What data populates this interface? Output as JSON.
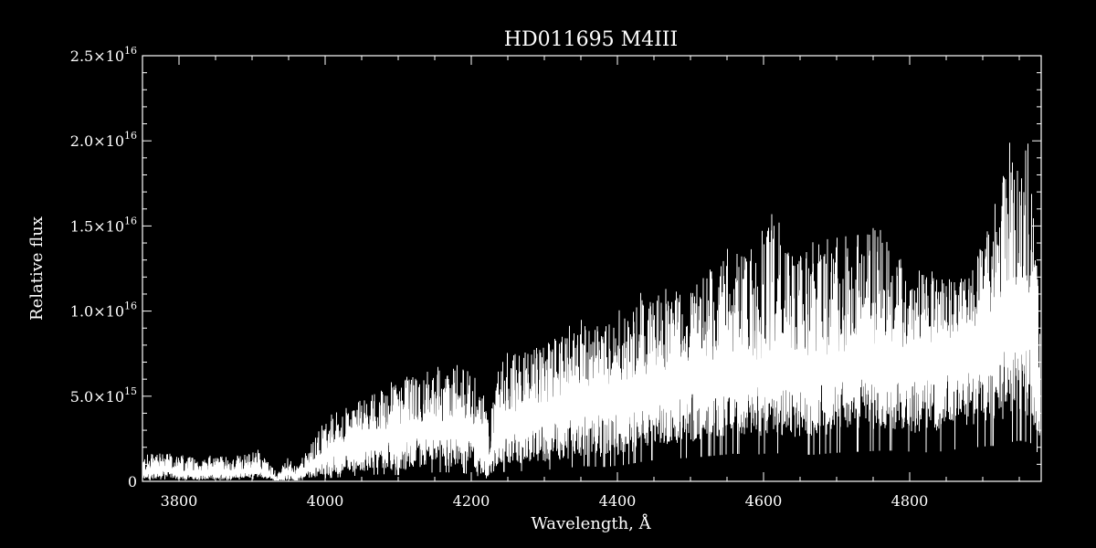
{
  "chart_data": {
    "type": "line",
    "title": "HD011695   M4III",
    "xlabel": "Wavelength, Å",
    "ylabel": "Relative flux",
    "xlim": [
      3750,
      4980
    ],
    "ylim": [
      0,
      2.5e+16
    ],
    "x_ticks": [
      {
        "value": 3800,
        "label": "3800"
      },
      {
        "value": 4000,
        "label": "4000"
      },
      {
        "value": 4200,
        "label": "4200"
      },
      {
        "value": 4400,
        "label": "4400"
      },
      {
        "value": 4600,
        "label": "4600"
      },
      {
        "value": 4800,
        "label": "4800"
      }
    ],
    "y_ticks": [
      {
        "value": 0,
        "mantissa": "0",
        "exponent": ""
      },
      {
        "value": 5000000000000000.0,
        "mantissa": "5.0×10",
        "exponent": "15"
      },
      {
        "value": 1e+16,
        "mantissa": "1.0×10",
        "exponent": "16"
      },
      {
        "value": 1.5e+16,
        "mantissa": "1.5×10",
        "exponent": "16"
      },
      {
        "value": 2e+16,
        "mantissa": "2.0×10",
        "exponent": "16"
      },
      {
        "value": 2.5e+16,
        "mantissa": "2.5×10",
        "exponent": "16"
      }
    ],
    "x_minor_step": 50,
    "y_minor_step": 1000000000000000.0,
    "grid": false,
    "legend": "none",
    "colors": {
      "background": "#000000",
      "foreground": "#ffffff"
    },
    "series": [
      {
        "envelope_upper": {
          "x": [
            3755,
            3780,
            3800,
            3830,
            3860,
            3890,
            3910,
            3925,
            3935,
            3950,
            3960,
            3975,
            4000,
            4020,
            4050,
            4080,
            4100,
            4130,
            4160,
            4190,
            4210,
            4225,
            4240,
            4270,
            4300,
            4330,
            4350,
            4380,
            4410,
            4440,
            4470,
            4500,
            4530,
            4560,
            4590,
            4610,
            4640,
            4670,
            4700,
            4730,
            4760,
            4790,
            4810,
            4840,
            4870,
            4900,
            4920,
            4935,
            4950,
            4965,
            4978
          ],
          "y": [
            1600000000000000.0,
            1700000000000000.0,
            1500000000000000.0,
            1400000000000000.0,
            1500000000000000.0,
            1600000000000000.0,
            1800000000000000.0,
            1000000000000000.0,
            500000000000000.0,
            1400000000000000.0,
            800000000000000.0,
            1800000000000000.0,
            3500000000000000.0,
            4200000000000000.0,
            4800000000000000.0,
            5500000000000000.0,
            6000000000000000.0,
            6200000000000000.0,
            6500000000000000.0,
            6800000000000000.0,
            6000000000000000.0,
            3500000000000000.0,
            7500000000000000.0,
            7800000000000000.0,
            8000000000000000.0,
            8800000000000000.0,
            9200000000000000.0,
            9000000000000000.0,
            9800000000000000.0,
            1.1e+16,
            1.1e+16,
            1.15e+16,
            1.25e+16,
            1.35e+16,
            1.3e+16,
            1.55e+16,
            1.35e+16,
            1.35e+16,
            1.38e+16,
            1.4e+16,
            1.55e+16,
            1.25e+16,
            1.25e+16,
            1.2e+16,
            1.2e+16,
            1.4e+16,
            1.65e+16,
            1.95e+16,
            1.8e+16,
            2e+16,
            1.1e+16
          ]
        },
        "envelope_center": {
          "x": [
            3755,
            3780,
            3800,
            3830,
            3860,
            3890,
            3910,
            3925,
            3935,
            3950,
            3960,
            3975,
            4000,
            4020,
            4050,
            4080,
            4100,
            4130,
            4160,
            4190,
            4210,
            4225,
            4240,
            4270,
            4300,
            4330,
            4350,
            4380,
            4410,
            4440,
            4470,
            4500,
            4530,
            4560,
            4590,
            4610,
            4640,
            4670,
            4700,
            4730,
            4760,
            4790,
            4810,
            4840,
            4870,
            4900,
            4920,
            4935,
            4950,
            4965,
            4978
          ],
          "y": [
            600000000000000.0,
            800000000000000.0,
            600000000000000.0,
            500000000000000.0,
            600000000000000.0,
            700000000000000.0,
            800000000000000.0,
            400000000000000.0,
            100000000000000.0,
            600000000000000.0,
            300000000000000.0,
            800000000000000.0,
            1800000000000000.0,
            2200000000000000.0,
            2800000000000000.0,
            3000000000000000.0,
            3200000000000000.0,
            3400000000000000.0,
            3500000000000000.0,
            3600000000000000.0,
            3000000000000000.0,
            1500000000000000.0,
            3800000000000000.0,
            4200000000000000.0,
            4500000000000000.0,
            5200000000000000.0,
            5500000000000000.0,
            5300000000000000.0,
            5800000000000000.0,
            6200000000000000.0,
            6500000000000000.0,
            6800000000000000.0,
            7000000000000000.0,
            7300000000000000.0,
            7000000000000000.0,
            7500000000000000.0,
            7200000000000000.0,
            7000000000000000.0,
            7400000000000000.0,
            7500000000000000.0,
            7800000000000000.0,
            7600000000000000.0,
            7800000000000000.0,
            8000000000000000.0,
            8400000000000000.0,
            9000000000000000.0,
            9500000000000000.0,
            1.05e+16,
            1.1e+16,
            1.1e+16,
            4000000000000000.0
          ]
        },
        "envelope_lower": {
          "x": [
            3755,
            3780,
            3800,
            3830,
            3860,
            3890,
            3910,
            3925,
            3935,
            3950,
            3960,
            3975,
            4000,
            4020,
            4050,
            4080,
            4100,
            4130,
            4160,
            4190,
            4210,
            4225,
            4240,
            4270,
            4300,
            4330,
            4350,
            4380,
            4410,
            4440,
            4470,
            4500,
            4530,
            4560,
            4590,
            4610,
            4640,
            4670,
            4700,
            4730,
            4760,
            4790,
            4810,
            4840,
            4870,
            4900,
            4920,
            4935,
            4950,
            4965,
            4978
          ],
          "y": [
            100000000000000.0,
            200000000000000.0,
            100000000000000.0,
            100000000000000.0,
            100000000000000.0,
            200000000000000.0,
            200000000000000.0,
            100000000000000.0,
            0.0,
            100000000000000.0,
            0.0,
            200000000000000.0,
            300000000000000.0,
            400000000000000.0,
            600000000000000.0,
            700000000000000.0,
            600000000000000.0,
            800000000000000.0,
            900000000000000.0,
            800000000000000.0,
            500000000000000.0,
            200000000000000.0,
            900000000000000.0,
            1000000000000000.0,
            1100000000000000.0,
            1300000000000000.0,
            1500000000000000.0,
            1400000000000000.0,
            1600000000000000.0,
            2000000000000000.0,
            2200000000000000.0,
            2300000000000000.0,
            2500000000000000.0,
            2700000000000000.0,
            2600000000000000.0,
            2800000000000000.0,
            2600000000000000.0,
            2600000000000000.0,
            2800000000000000.0,
            2900000000000000.0,
            3000000000000000.0,
            3000000000000000.0,
            2800000000000000.0,
            2900000000000000.0,
            3200000000000000.0,
            3400000000000000.0,
            3500000000000000.0,
            3800000000000000.0,
            4000000000000000.0,
            3800000000000000.0,
            2500000000000000.0
          ]
        }
      }
    ]
  }
}
